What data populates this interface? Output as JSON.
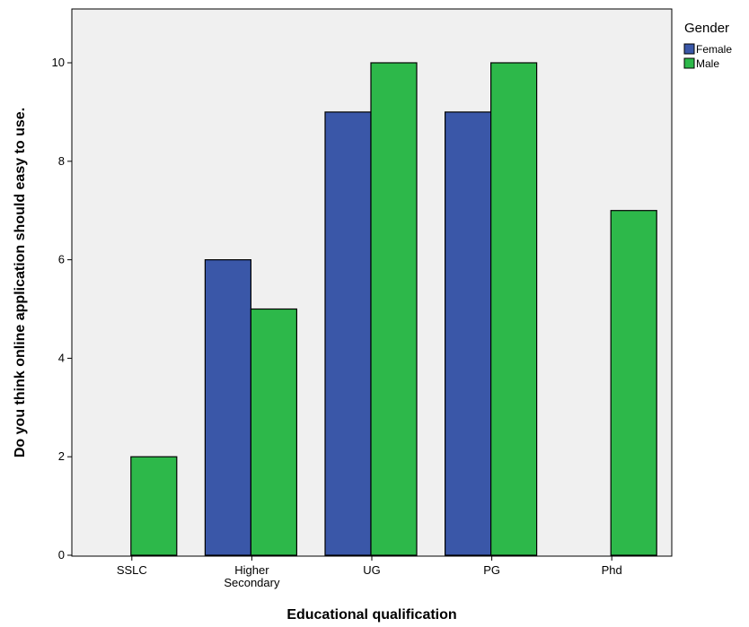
{
  "chart_data": {
    "type": "bar",
    "title": "",
    "xlabel": "Educational qualification",
    "ylabel": "Do you think online application should easy to use.",
    "categories": [
      "SSLC",
      "Higher Secondary",
      "UG",
      "PG",
      "Phd"
    ],
    "series": [
      {
        "name": "Female",
        "color": "#3a57a8",
        "values": [
          0,
          6,
          9,
          9,
          0
        ]
      },
      {
        "name": "Male",
        "color": "#2db84a",
        "values": [
          2,
          5,
          10,
          10,
          7
        ]
      }
    ],
    "ylim": [
      0,
      11
    ],
    "yticks": [
      0,
      2,
      4,
      6,
      8,
      10
    ],
    "legend": {
      "title": "Gender",
      "position": "right"
    },
    "grid": false,
    "plot_background": "#f0f0f0"
  }
}
